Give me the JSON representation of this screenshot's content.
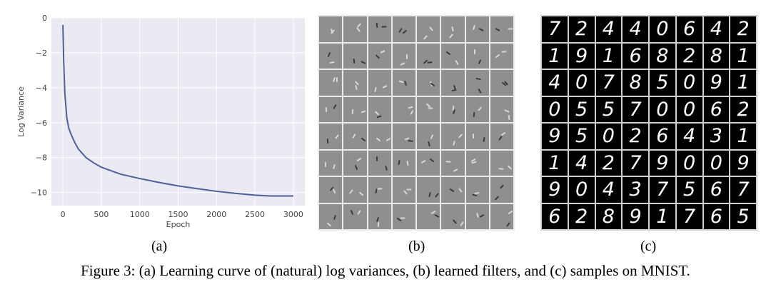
{
  "chart_data": {
    "type": "line",
    "xlabel": "Epoch",
    "ylabel": "Log Variance",
    "xlim": [
      -150,
      3150
    ],
    "ylim": [
      -10.75,
      0
    ],
    "xticks": [
      0,
      500,
      1000,
      1500,
      2000,
      2500,
      3000
    ],
    "yticks": [
      0,
      -2,
      -4,
      -6,
      -8,
      -10
    ],
    "ytick_labels": [
      "0",
      "−2",
      "−4",
      "−6",
      "−8",
      "−10"
    ],
    "grid": true,
    "style": "seaborn-darkgrid",
    "line_color": "#4c5f9e",
    "background_color": "#eaeaf2",
    "series": [
      {
        "x": [
          0,
          10,
          25,
          50,
          75,
          100,
          150,
          200,
          300,
          400,
          500,
          750,
          1000,
          1250,
          1500,
          1750,
          2000,
          2250,
          2500,
          2700,
          3000
        ],
        "y": [
          -0.4,
          -2.5,
          -4.3,
          -5.7,
          -6.3,
          -6.6,
          -7.1,
          -7.5,
          -8.0,
          -8.3,
          -8.55,
          -8.95,
          -9.2,
          -9.42,
          -9.62,
          -9.78,
          -9.93,
          -10.05,
          -10.15,
          -10.2,
          -10.2
        ]
      }
    ]
  },
  "panels": {
    "a_label": "(a)",
    "b_label": "(b)",
    "c_label": "(c)",
    "mnist_digits": [
      [
        "7",
        "2",
        "4",
        "4",
        "0",
        "6",
        "4",
        "2"
      ],
      [
        "1",
        "9",
        "1",
        "6",
        "8",
        "2",
        "8",
        "1"
      ],
      [
        "4",
        "0",
        "7",
        "8",
        "5",
        "0",
        "9",
        "1"
      ],
      [
        "0",
        "5",
        "5",
        "7",
        "0",
        "0",
        "6",
        "2"
      ],
      [
        "9",
        "5",
        "0",
        "2",
        "6",
        "4",
        "3",
        "1"
      ],
      [
        "1",
        "4",
        "2",
        "7",
        "9",
        "0",
        "0",
        "9"
      ],
      [
        "9",
        "0",
        "4",
        "3",
        "7",
        "5",
        "6",
        "7"
      ],
      [
        "6",
        "2",
        "8",
        "9",
        "1",
        "7",
        "6",
        "5"
      ]
    ]
  },
  "caption": "Figure 3: (a) Learning curve of (natural) log variances, (b) learned filters, and (c) samples on MNIST."
}
